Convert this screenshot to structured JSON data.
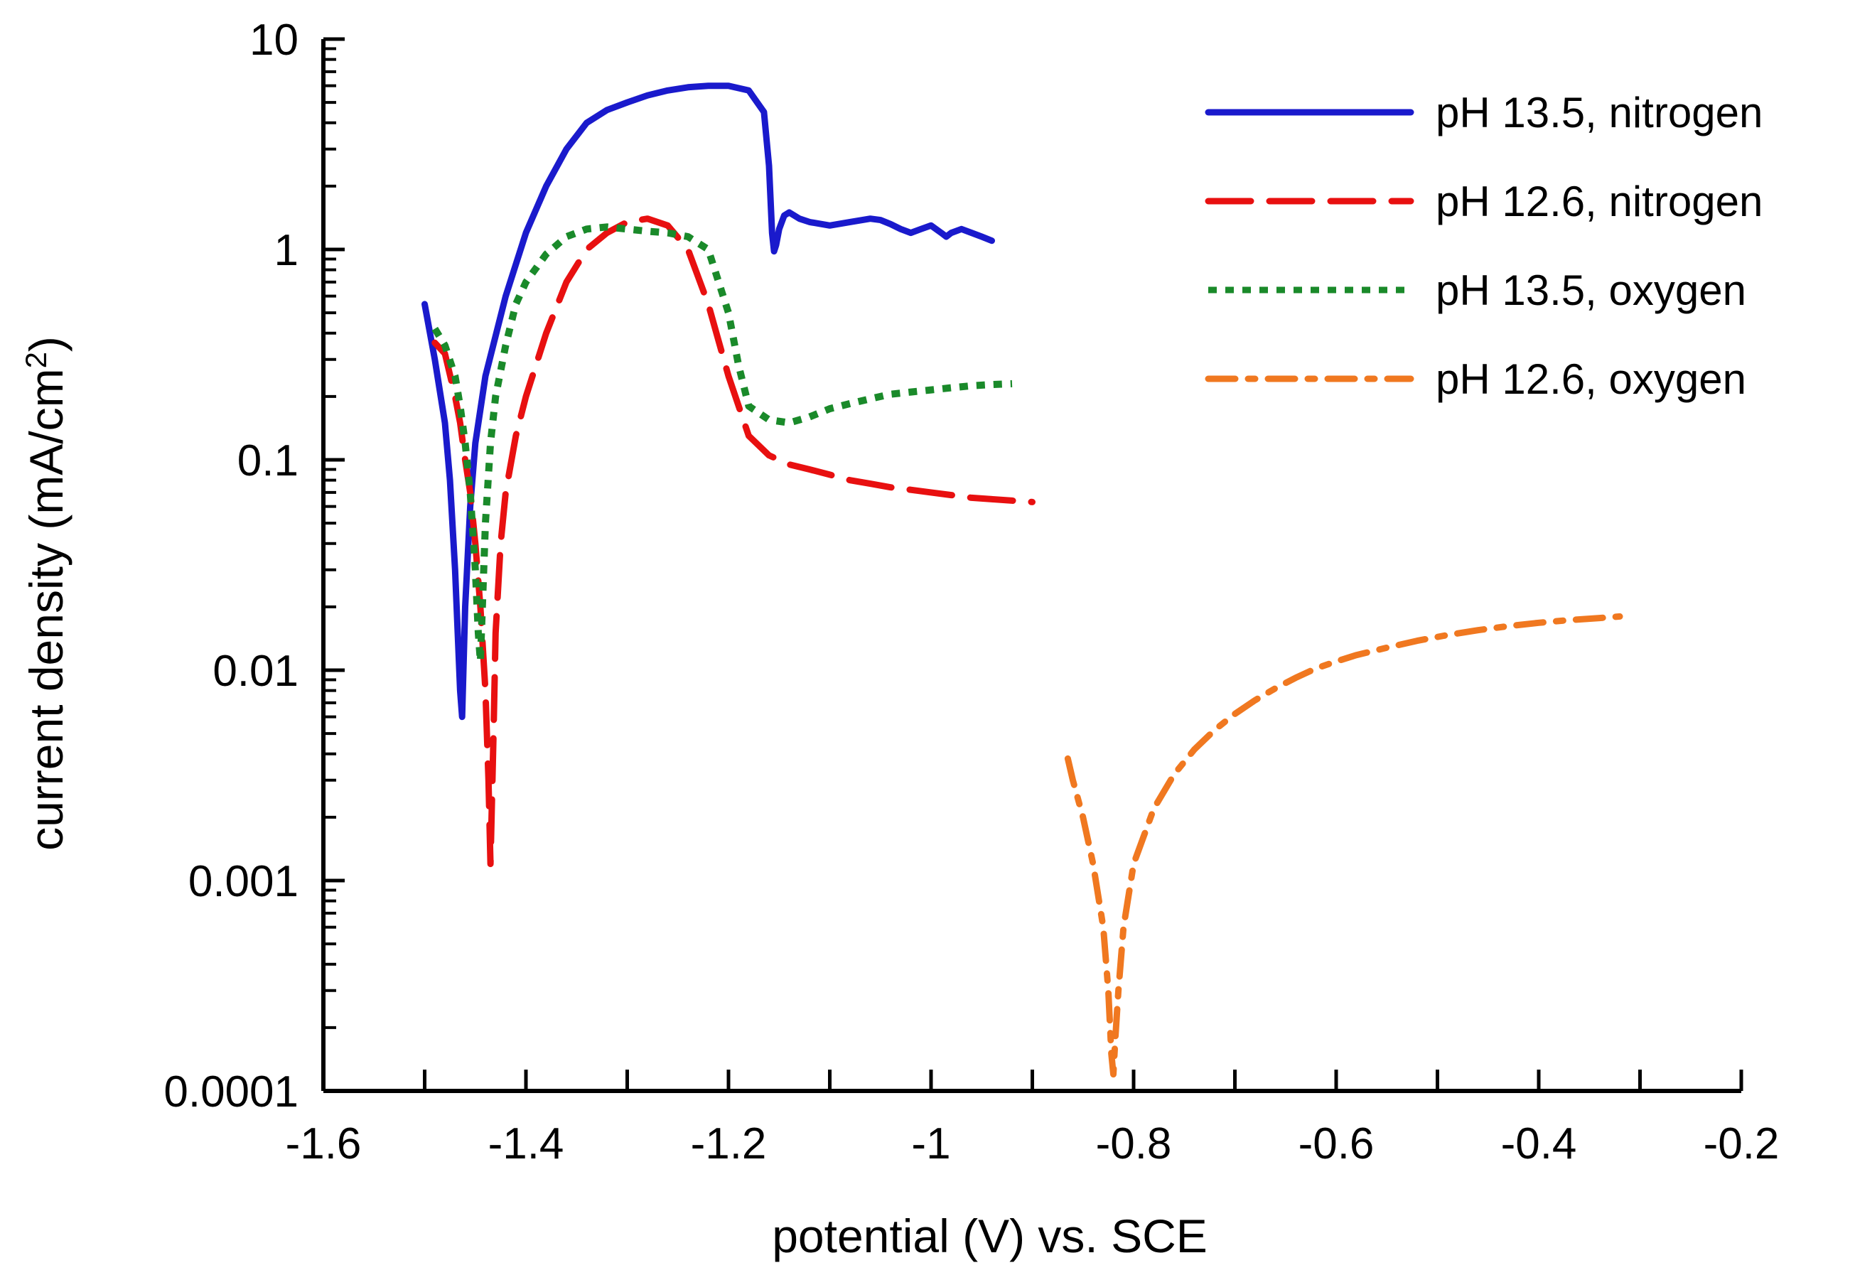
{
  "chart_data": {
    "type": "line",
    "title": "",
    "xlabel": "potential (V) vs. SCE",
    "ylabel": "current density (mA/cm",
    "ylabel_sup": "2",
    "ylabel_close": ")",
    "xlim": [
      -1.6,
      -0.2
    ],
    "ylim": [
      0.0001,
      10
    ],
    "yscale": "log",
    "x_ticks": [
      -1.6,
      -1.4,
      -1.2,
      -1.0,
      -0.8,
      -0.6,
      -0.4,
      -0.2
    ],
    "x_tick_labels": [
      "-1.6",
      "-1.4",
      "-1.2",
      "-1",
      "-0.8",
      "-0.6",
      "-0.4",
      "-0.2"
    ],
    "y_ticks": [
      0.0001,
      0.001,
      0.01,
      0.1,
      1,
      10
    ],
    "y_tick_labels": [
      "0.0001",
      "0.001",
      "0.01",
      "0.1",
      "1",
      "10"
    ],
    "legend_position": "top-right",
    "series": [
      {
        "name": "pH 13.5, nitrogen",
        "color": "#1a1acc",
        "style": "solid",
        "x": [
          -1.5,
          -1.49,
          -1.48,
          -1.475,
          -1.47,
          -1.465,
          -1.463,
          -1.46,
          -1.455,
          -1.45,
          -1.44,
          -1.42,
          -1.4,
          -1.38,
          -1.36,
          -1.34,
          -1.32,
          -1.3,
          -1.28,
          -1.26,
          -1.24,
          -1.22,
          -1.2,
          -1.18,
          -1.165,
          -1.16,
          -1.157,
          -1.155,
          -1.153,
          -1.15,
          -1.145,
          -1.14,
          -1.13,
          -1.12,
          -1.1,
          -1.08,
          -1.06,
          -1.05,
          -1.04,
          -1.03,
          -1.02,
          -1.01,
          -1.0,
          -0.99,
          -0.985,
          -0.98,
          -0.97,
          -0.96,
          -0.95,
          -0.94
        ],
        "y": [
          0.55,
          0.3,
          0.15,
          0.08,
          0.03,
          0.008,
          0.006,
          0.02,
          0.06,
          0.12,
          0.25,
          0.6,
          1.2,
          2.0,
          3.0,
          4.0,
          4.6,
          5.0,
          5.4,
          5.7,
          5.9,
          6.0,
          6.0,
          5.7,
          4.5,
          2.5,
          1.2,
          0.98,
          1.05,
          1.25,
          1.45,
          1.5,
          1.4,
          1.35,
          1.3,
          1.35,
          1.4,
          1.38,
          1.32,
          1.25,
          1.2,
          1.25,
          1.3,
          1.2,
          1.15,
          1.2,
          1.25,
          1.2,
          1.15,
          1.1
        ]
      },
      {
        "name": "pH 12.6, nitrogen",
        "color": "#e81010",
        "style": "dashed",
        "x": [
          -1.49,
          -1.48,
          -1.47,
          -1.465,
          -1.46,
          -1.455,
          -1.45,
          -1.445,
          -1.44,
          -1.437,
          -1.435,
          -1.432,
          -1.43,
          -1.425,
          -1.42,
          -1.41,
          -1.4,
          -1.38,
          -1.36,
          -1.34,
          -1.32,
          -1.3,
          -1.28,
          -1.26,
          -1.24,
          -1.22,
          -1.2,
          -1.18,
          -1.16,
          -1.14,
          -1.12,
          -1.1,
          -1.08,
          -1.06,
          -1.04,
          -1.02,
          -1.0,
          -0.98,
          -0.96,
          -0.94,
          -0.92,
          -0.9
        ],
        "y": [
          0.36,
          0.32,
          0.2,
          0.15,
          0.1,
          0.07,
          0.04,
          0.02,
          0.008,
          0.003,
          0.0012,
          0.005,
          0.015,
          0.04,
          0.07,
          0.13,
          0.2,
          0.4,
          0.7,
          1.0,
          1.2,
          1.35,
          1.4,
          1.3,
          1.0,
          0.55,
          0.25,
          0.13,
          0.105,
          0.095,
          0.09,
          0.085,
          0.08,
          0.077,
          0.074,
          0.072,
          0.07,
          0.068,
          0.066,
          0.065,
          0.064,
          0.063
        ]
      },
      {
        "name": "pH 13.5, oxygen",
        "color": "#1a8a2a",
        "style": "dotted",
        "x": [
          -1.49,
          -1.48,
          -1.47,
          -1.465,
          -1.46,
          -1.455,
          -1.45,
          -1.447,
          -1.445,
          -1.443,
          -1.44,
          -1.435,
          -1.43,
          -1.42,
          -1.41,
          -1.4,
          -1.38,
          -1.36,
          -1.34,
          -1.32,
          -1.3,
          -1.28,
          -1.26,
          -1.24,
          -1.22,
          -1.2,
          -1.19,
          -1.18,
          -1.16,
          -1.14,
          -1.12,
          -1.1,
          -1.08,
          -1.06,
          -1.04,
          -1.02,
          -1.0,
          -0.98,
          -0.96,
          -0.94,
          -0.92
        ],
        "y": [
          0.42,
          0.35,
          0.25,
          0.18,
          0.12,
          0.07,
          0.03,
          0.015,
          0.011,
          0.02,
          0.05,
          0.12,
          0.2,
          0.35,
          0.55,
          0.7,
          0.95,
          1.15,
          1.25,
          1.28,
          1.25,
          1.22,
          1.2,
          1.15,
          1.0,
          0.5,
          0.28,
          0.18,
          0.155,
          0.15,
          0.16,
          0.175,
          0.185,
          0.195,
          0.205,
          0.21,
          0.215,
          0.22,
          0.225,
          0.228,
          0.23
        ]
      },
      {
        "name": "pH 12.6, oxygen",
        "color": "#f07820",
        "style": "dashdot",
        "x": [
          -0.865,
          -0.86,
          -0.85,
          -0.84,
          -0.83,
          -0.825,
          -0.822,
          -0.82,
          -0.818,
          -0.815,
          -0.81,
          -0.8,
          -0.78,
          -0.76,
          -0.74,
          -0.72,
          -0.7,
          -0.68,
          -0.66,
          -0.64,
          -0.62,
          -0.6,
          -0.58,
          -0.55,
          -0.52,
          -0.49,
          -0.46,
          -0.43,
          -0.4,
          -0.37,
          -0.34,
          -0.32
        ],
        "y": [
          0.0038,
          0.003,
          0.002,
          0.0012,
          0.0006,
          0.0003,
          0.00015,
          0.00012,
          0.00018,
          0.0003,
          0.0006,
          0.0012,
          0.0022,
          0.0032,
          0.0042,
          0.0052,
          0.0062,
          0.0072,
          0.0082,
          0.0092,
          0.0102,
          0.011,
          0.0118,
          0.0128,
          0.0138,
          0.0147,
          0.0155,
          0.0162,
          0.0168,
          0.0173,
          0.0177,
          0.018
        ]
      }
    ]
  }
}
